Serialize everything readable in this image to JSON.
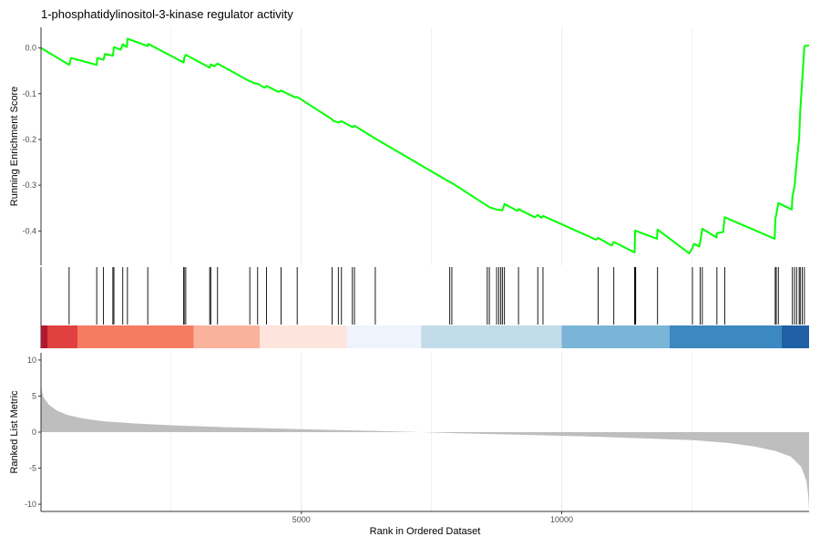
{
  "chart_data": {
    "type": "line",
    "title": "1-phosphatidylinositol-3-kinase regulator activity",
    "xlabel": "Rank in Ordered Dataset",
    "ylabel_top": "Running Enrichment Score",
    "ylabel_bottom": "Ranked List Metric",
    "xlim": [
      0,
      14750
    ],
    "x_ticks": [
      5000,
      10000
    ],
    "x_tick_labels": [
      "5000",
      "10000"
    ],
    "es_ylim": [
      -0.475,
      0.045
    ],
    "es_ticks": [
      0.0,
      -0.1,
      -0.2,
      -0.3,
      -0.4
    ],
    "es_tick_labels": [
      "0.0",
      "-0.1",
      "-0.2",
      "-0.3",
      "-0.4"
    ],
    "metric_ylim": [
      -11.0,
      11.0
    ],
    "metric_ticks": [
      10,
      5,
      0,
      -5,
      -10
    ],
    "metric_tick_labels": [
      "10",
      "5",
      "0",
      "-5",
      "-10"
    ],
    "grid": true,
    "line_color": "#00ff00",
    "area_color": "#bebebe",
    "series": [
      {
        "values": [
          [
            0,
            0.0
          ],
          [
            540,
            -0.037
          ],
          [
            580,
            -0.022
          ],
          [
            1070,
            -0.037
          ],
          [
            1080,
            -0.022
          ],
          [
            1200,
            -0.026
          ],
          [
            1230,
            -0.013
          ],
          [
            1380,
            -0.017
          ],
          [
            1400,
            0.002
          ],
          [
            1530,
            -0.004
          ],
          [
            1570,
            0.008
          ],
          [
            1650,
            0.002
          ],
          [
            1660,
            0.02
          ],
          [
            2050,
            0.004
          ],
          [
            2060,
            0.009
          ],
          [
            2740,
            -0.032
          ],
          [
            2750,
            -0.022
          ],
          [
            2780,
            -0.015
          ],
          [
            3240,
            -0.043
          ],
          [
            3260,
            -0.036
          ],
          [
            3330,
            -0.04
          ],
          [
            3390,
            -0.034
          ],
          [
            4010,
            -0.073
          ],
          [
            4050,
            -0.074
          ],
          [
            4080,
            -0.077
          ],
          [
            4160,
            -0.078
          ],
          [
            4290,
            -0.087
          ],
          [
            4330,
            -0.083
          ],
          [
            4560,
            -0.096
          ],
          [
            4610,
            -0.093
          ],
          [
            4880,
            -0.108
          ],
          [
            4920,
            -0.107
          ],
          [
            5590,
            -0.156
          ],
          [
            5610,
            -0.159
          ],
          [
            5710,
            -0.163
          ],
          [
            5770,
            -0.16
          ],
          [
            5980,
            -0.173
          ],
          [
            6020,
            -0.17
          ],
          [
            6420,
            -0.198
          ],
          [
            7850,
            -0.293
          ],
          [
            7890,
            -0.295
          ],
          [
            8570,
            -0.345
          ],
          [
            8610,
            -0.348
          ],
          [
            8750,
            -0.353
          ],
          [
            8860,
            -0.355
          ],
          [
            8900,
            -0.341
          ],
          [
            9150,
            -0.356
          ],
          [
            9170,
            -0.352
          ],
          [
            9480,
            -0.37
          ],
          [
            9540,
            -0.365
          ],
          [
            9610,
            -0.371
          ],
          [
            9640,
            -0.367
          ],
          [
            10660,
            -0.419
          ],
          [
            10700,
            -0.415
          ],
          [
            10960,
            -0.432
          ],
          [
            11000,
            -0.424
          ],
          [
            11400,
            -0.447
          ],
          [
            11410,
            -0.399
          ],
          [
            11830,
            -0.417
          ],
          [
            11840,
            -0.397
          ],
          [
            12450,
            -0.449
          ],
          [
            12510,
            -0.437
          ],
          [
            12540,
            -0.428
          ],
          [
            12640,
            -0.434
          ],
          [
            12660,
            -0.423
          ],
          [
            12700,
            -0.395
          ],
          [
            12970,
            -0.414
          ],
          [
            12980,
            -0.405
          ],
          [
            13100,
            -0.402
          ],
          [
            13130,
            -0.37
          ],
          [
            14090,
            -0.417
          ],
          [
            14100,
            -0.375
          ],
          [
            14120,
            -0.364
          ],
          [
            14160,
            -0.339
          ],
          [
            14420,
            -0.353
          ],
          [
            14430,
            -0.325
          ],
          [
            14470,
            -0.304
          ],
          [
            14510,
            -0.252
          ],
          [
            14560,
            -0.198
          ],
          [
            14580,
            -0.138
          ],
          [
            14620,
            -0.067
          ],
          [
            14660,
            0.004
          ],
          [
            14750,
            0.006
          ]
        ]
      }
    ],
    "hits": [
      540,
      1070,
      1200,
      1380,
      1400,
      1570,
      1660,
      2050,
      2740,
      2750,
      2780,
      3240,
      3260,
      3390,
      4010,
      4160,
      4330,
      4610,
      4920,
      5590,
      5710,
      5770,
      5980,
      6020,
      6420,
      7850,
      7890,
      8570,
      8610,
      8750,
      8790,
      8830,
      8860,
      8900,
      9170,
      9540,
      9640,
      10700,
      11000,
      11400,
      11410,
      11420,
      11840,
      12510,
      12660,
      12700,
      12980,
      13130,
      14100,
      14120,
      14160,
      14430,
      14470,
      14510,
      14560,
      14580,
      14620,
      14660
    ],
    "color_bands": [
      {
        "from": 0,
        "to": 130,
        "color": "#b2182b"
      },
      {
        "from": 130,
        "to": 700,
        "color": "#e04040"
      },
      {
        "from": 700,
        "to": 2930,
        "color": "#f67b61"
      },
      {
        "from": 2930,
        "to": 4200,
        "color": "#fbb29d"
      },
      {
        "from": 4200,
        "to": 5870,
        "color": "#fde5dd"
      },
      {
        "from": 5870,
        "to": 7300,
        "color": "#eff3fb"
      },
      {
        "from": 7300,
        "to": 10000,
        "color": "#c2dbe9"
      },
      {
        "from": 10000,
        "to": 12070,
        "color": "#7ab4d6"
      },
      {
        "from": 12070,
        "to": 14220,
        "color": "#3c88c0"
      },
      {
        "from": 14220,
        "to": 14750,
        "color": "#1f61a4"
      }
    ],
    "metric_curve": [
      [
        0,
        7.0
      ],
      [
        20,
        5.6
      ],
      [
        50,
        4.8
      ],
      [
        150,
        3.8
      ],
      [
        300,
        3.0
      ],
      [
        500,
        2.4
      ],
      [
        800,
        1.9
      ],
      [
        1200,
        1.5
      ],
      [
        1800,
        1.2
      ],
      [
        2500,
        0.95
      ],
      [
        3500,
        0.7
      ],
      [
        5000,
        0.4
      ],
      [
        6500,
        0.15
      ],
      [
        7300,
        0.0
      ],
      [
        8000,
        -0.15
      ],
      [
        9500,
        -0.4
      ],
      [
        10500,
        -0.6
      ],
      [
        11500,
        -0.85
      ],
      [
        12500,
        -1.1
      ],
      [
        13200,
        -1.5
      ],
      [
        13700,
        -2.0
      ],
      [
        14100,
        -2.6
      ],
      [
        14400,
        -3.4
      ],
      [
        14600,
        -4.8
      ],
      [
        14700,
        -6.8
      ],
      [
        14730,
        -8.5
      ],
      [
        14750,
        -10.8
      ]
    ]
  }
}
